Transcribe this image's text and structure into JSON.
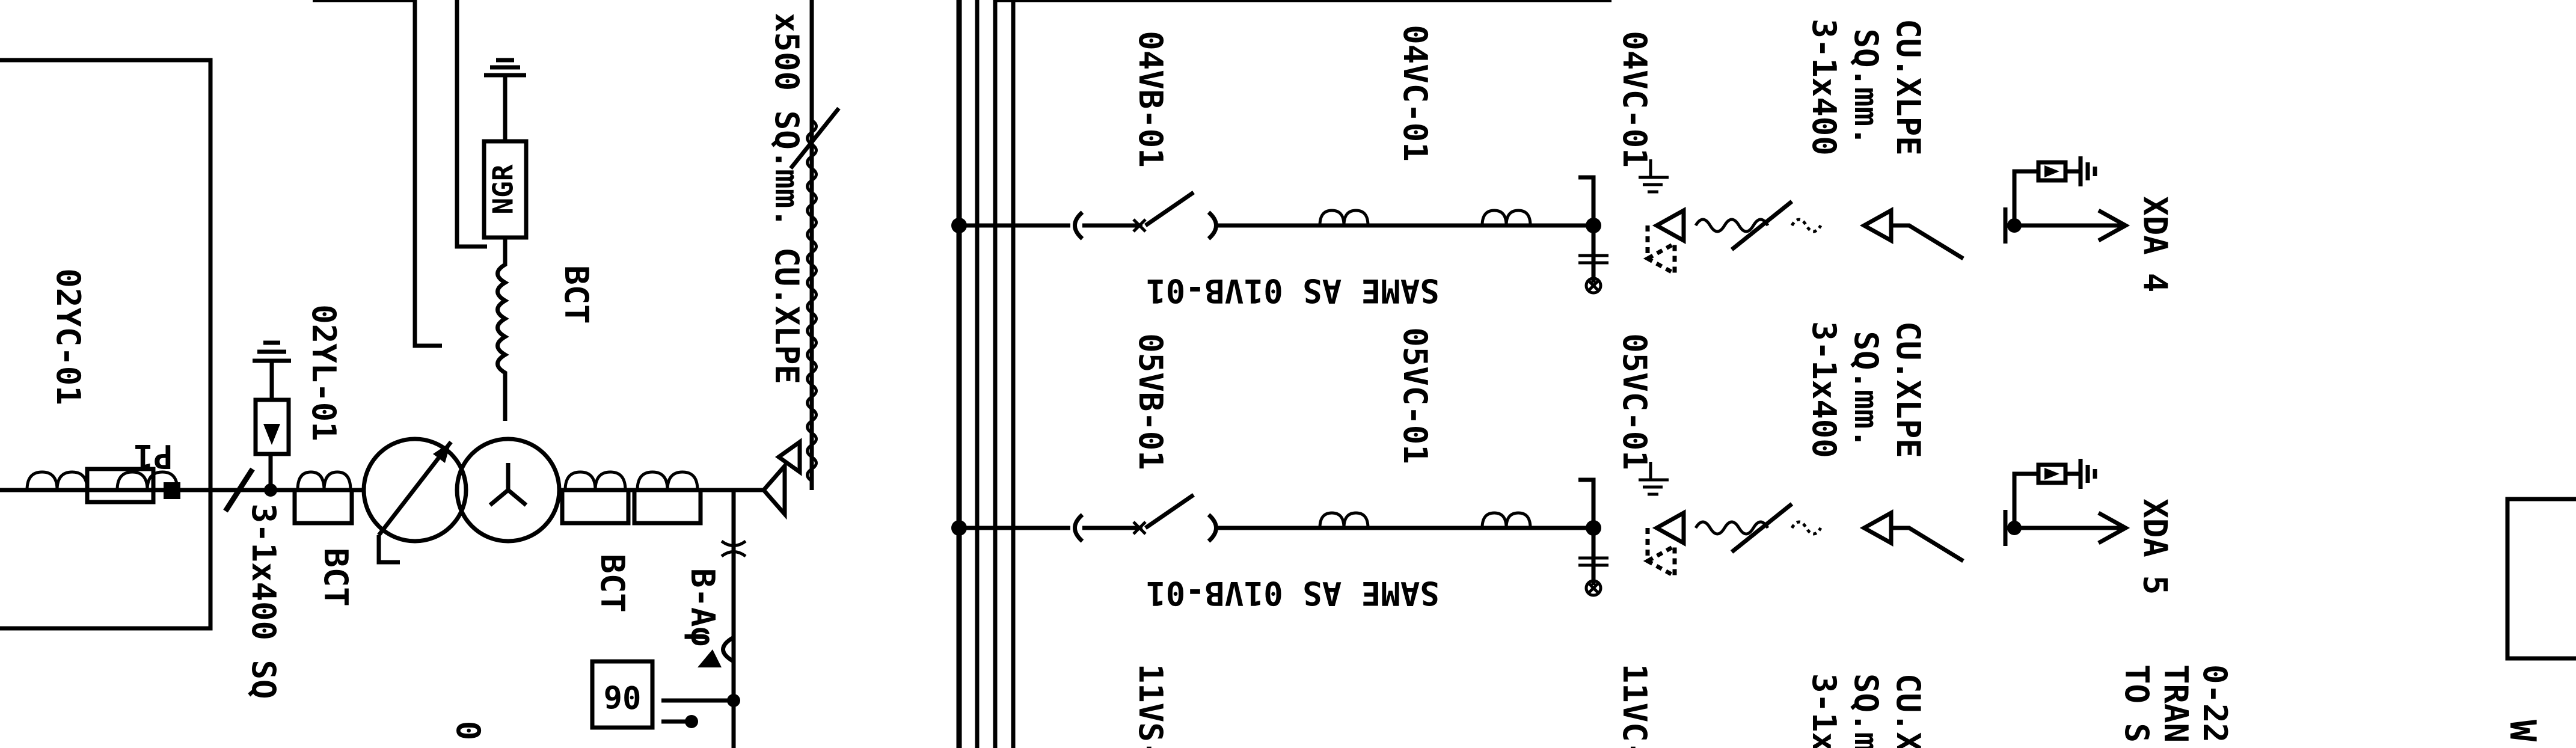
{
  "diagram": {
    "colors": {
      "line": "#000000",
      "background": "#ffffff"
    },
    "left_section": {
      "ct_label_1": "02YC-01",
      "ct_label_2": "02YL-01",
      "ct_label_3": "P1",
      "bct_1": "BCT",
      "bct_2": "BCT",
      "bct_3": "BCT",
      "ngr": "NGR",
      "cable_label": "3-1x400 SQ",
      "cable_label_2": "x500 SQ.mm. CU.XLPE",
      "relay_box": "06",
      "breaker_label": "B-Aφ",
      "partial_label": "0"
    },
    "feeders": [
      {
        "breaker": "04VB-01",
        "ct": "04VC-01",
        "ct2": "04VC-01",
        "note": "SAME AS 01VB-01",
        "cable_line1": "3-1x400",
        "cable_line2": "SQ.mm.",
        "cable_line3": "CU.XLPE",
        "terminal": "XDA",
        "number": "4"
      },
      {
        "breaker": "05VB-01",
        "ct": "05VC-01",
        "ct2": "05VC-01",
        "note": "SAME AS 01VB-01",
        "cable_line1": "3-1x400",
        "cable_line2": "SQ.mm.",
        "cable_line3": "CU.XLPE",
        "terminal": "XDA",
        "number": "5"
      }
    ],
    "bottom_row": {
      "label_1": "11VS-",
      "label_2": "11VC-",
      "label_3a": "3-1x",
      "label_3b": "SQ.m",
      "label_3c": "CU.X",
      "label_4a": "TO S",
      "label_4b": "TRAN",
      "label_4c": "0-22",
      "label_5": "W"
    }
  }
}
